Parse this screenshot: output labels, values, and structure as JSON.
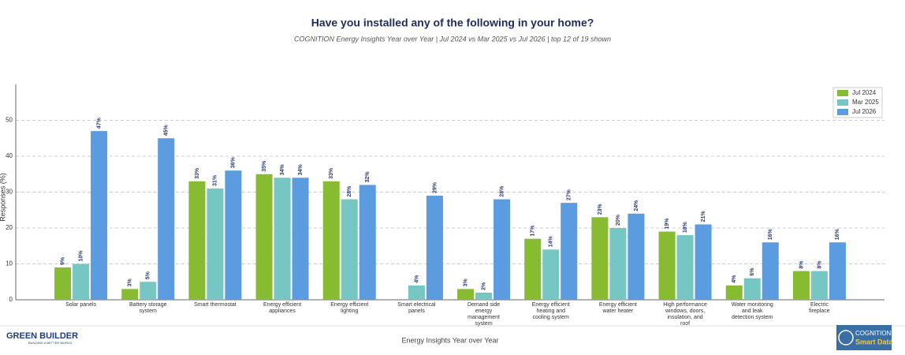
{
  "chart_data": {
    "type": "bar",
    "title": "Have you installed any of the following in your home?",
    "subtitle": "COGNITION Energy Insights Year over Year | Jul 2024 vs Mar 2025 vs Jul 2026  |  top 12 of 19 shown",
    "y_label": "Responses (%)",
    "x_caption": "Energy Insights Year over Year",
    "categories": [
      "Solar panels",
      "Battery storage\nsystem",
      "Smart thermostat",
      "Energy efficient\nappliances",
      "Energy efficient\nlighting",
      "Smart electrical\npanels",
      "Demand side\nenergy\nmanagement\nsystem",
      "Energy efficient\nheating and\ncooling system",
      "Energy efficient\nwater heater",
      "High performance\nwindows, doors,\ninsulation, and\nroof",
      "Water monitoring\nand leak\ndetection system",
      "Electric\nfireplace"
    ],
    "series": [
      {
        "name": "Jul 2024",
        "color": "#86bb32",
        "values": [
          9,
          3,
          33,
          35,
          33,
          null,
          3,
          17,
          23,
          19,
          4,
          8
        ],
        "value_labels": [
          "9%",
          "3%",
          "33%",
          "35%",
          "33%",
          null,
          "3%",
          "17%",
          "23%",
          "19%",
          "4%",
          "8%"
        ]
      },
      {
        "name": "Mar 2025",
        "color": "#76c6c4",
        "values": [
          10,
          5,
          31,
          34,
          28,
          4,
          2,
          14,
          20,
          18,
          6,
          8
        ],
        "value_labels": [
          "10%",
          "5%",
          "31%",
          "34%",
          "28%",
          "4%",
          "2%",
          "14%",
          "20%",
          "18%",
          "6%",
          "8%"
        ]
      },
      {
        "name": "Jul 2026",
        "color": "#5b9ce0",
        "values": [
          47,
          45,
          36,
          34,
          32,
          29,
          28,
          27,
          24,
          21,
          16,
          16
        ],
        "value_labels": [
          "47%",
          "45%",
          "36%",
          "34%",
          "32%",
          "29%",
          "28%",
          "27%",
          "24%",
          "21%",
          "16%",
          "16%"
        ]
      }
    ],
    "ylim": [
      0,
      60
    ],
    "yticks": [
      0,
      10,
      20,
      30,
      40,
      50
    ],
    "grid": true,
    "legend": "top-right"
  },
  "footer": {
    "brand": "GREEN BUILDER",
    "tagline": "BUILDING A BETTER WORLD",
    "badge_top": "COGNITION",
    "badge_bottom": "Smart Data"
  }
}
